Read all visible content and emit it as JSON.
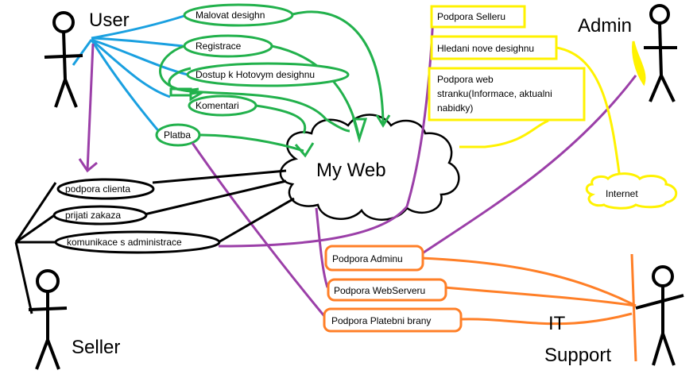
{
  "colors": {
    "user_links": "#1aa0e0",
    "web_links": "#22b14c",
    "purple": "#9b3fa8",
    "admin_boxes": "#fff200",
    "it_boxes": "#ff7f27",
    "black": "#000000"
  },
  "actors": {
    "user": "User",
    "admin": "Admin",
    "seller": "Seller",
    "it_support_line1": "IT",
    "it_support_line2": "Support"
  },
  "system": {
    "label": "My Web"
  },
  "user_usecases": [
    "Malovat desighn",
    "Registrace",
    "Dostup k Hotovym desighnu",
    "Komentari",
    "Platba"
  ],
  "seller_usecases": [
    "podpora clienta",
    "prijati zakaza",
    "komunikace s administrace"
  ],
  "admin_usecases": {
    "seller_support": "Podpora Selleru",
    "new_design_search": "Hledani nove desighnu",
    "web_support_line1": "Podpora web",
    "web_support_line2": "stranku(Informace, aktualni",
    "web_support_line3": "nabidky)",
    "internet": "Internet"
  },
  "it_usecases": [
    "Podpora Adminu",
    "Podpora WebServeru",
    "Podpora Platebni brany"
  ]
}
